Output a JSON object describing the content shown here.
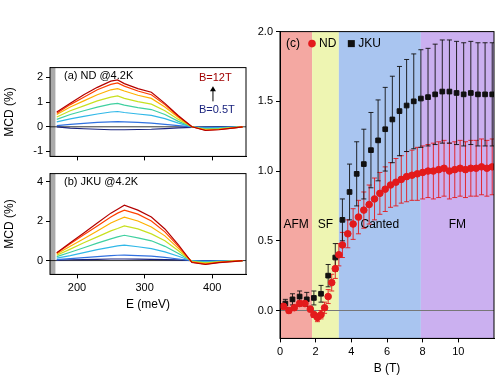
{
  "chart_data": [
    {
      "type": "line",
      "title": "(a) ND @4.2K",
      "x": [
        170,
        190,
        210,
        230,
        250,
        260,
        270,
        290,
        310,
        330,
        350,
        370,
        390,
        410,
        430,
        445
      ],
      "series": [
        {
          "color": "#b30000",
          "values": [
            0.6,
            0.95,
            1.3,
            1.6,
            1.85,
            1.9,
            1.75,
            1.55,
            1.4,
            0.95,
            0.45,
            0.0,
            -0.15,
            -0.12,
            -0.05,
            0.0
          ]
        },
        {
          "color": "#ff4000",
          "values": [
            0.55,
            0.9,
            1.2,
            1.5,
            1.72,
            1.78,
            1.65,
            1.45,
            1.3,
            0.9,
            0.42,
            0.0,
            -0.14,
            -0.11,
            -0.05,
            0.0
          ]
        },
        {
          "color": "#ffb000",
          "values": [
            0.5,
            0.8,
            1.05,
            1.3,
            1.5,
            1.55,
            1.45,
            1.28,
            1.15,
            0.8,
            0.38,
            0.0,
            -0.12,
            -0.1,
            -0.04,
            0.0
          ]
        },
        {
          "color": "#c8e020",
          "values": [
            0.4,
            0.65,
            0.85,
            1.05,
            1.2,
            1.25,
            1.15,
            1.02,
            0.92,
            0.65,
            0.3,
            0.0,
            -0.1,
            -0.08,
            -0.03,
            0.0
          ]
        },
        {
          "color": "#40d0a0",
          "values": [
            0.3,
            0.5,
            0.65,
            0.8,
            0.92,
            0.95,
            0.88,
            0.78,
            0.7,
            0.5,
            0.22,
            0.0,
            -0.08,
            -0.06,
            -0.02,
            0.0
          ]
        },
        {
          "color": "#30b8e8",
          "values": [
            0.2,
            0.32,
            0.42,
            0.52,
            0.6,
            0.62,
            0.58,
            0.52,
            0.46,
            0.33,
            0.15,
            0.0,
            -0.05,
            -0.04,
            -0.02,
            0.0
          ]
        },
        {
          "color": "#3070e0",
          "values": [
            0.05,
            0.1,
            0.14,
            0.18,
            0.2,
            0.21,
            0.2,
            0.18,
            0.15,
            0.1,
            0.05,
            0.0,
            -0.02,
            -0.02,
            0.0,
            0.0
          ]
        },
        {
          "color": "#1a237e",
          "values": [
            0.0,
            -0.05,
            -0.08,
            -0.1,
            -0.12,
            -0.12,
            -0.12,
            -0.11,
            -0.1,
            -0.07,
            -0.04,
            -0.02,
            -0.01,
            0.0,
            0.0,
            0.0
          ]
        }
      ],
      "xlim": [
        160,
        450
      ],
      "xticks": [
        200,
        300,
        400
      ],
      "ylim": [
        -1.2,
        2.4
      ],
      "yticks": [
        -1,
        0,
        1,
        2
      ],
      "y_label": "MCD (%)",
      "tick_labels": "y",
      "grid": false,
      "excluded_range": [
        160,
        168
      ],
      "zero_line": 0,
      "annotations": [
        {
          "text": "B=12T",
          "color": "#a00000"
        },
        {
          "text": "B=0.5T",
          "color": "#1a237e"
        }
      ]
    },
    {
      "type": "line",
      "title": "(b) JKU @4.2K",
      "x": [
        170,
        190,
        210,
        230,
        250,
        260,
        270,
        290,
        310,
        330,
        350,
        370,
        390,
        410,
        430,
        445
      ],
      "series": [
        {
          "color": "#b30000",
          "values": [
            0.4,
            0.9,
            1.4,
            1.9,
            2.4,
            2.6,
            2.8,
            2.55,
            2.2,
            1.6,
            0.8,
            -0.1,
            -0.2,
            -0.1,
            -0.05,
            0.0
          ]
        },
        {
          "color": "#ff4000",
          "values": [
            0.38,
            0.85,
            1.3,
            1.75,
            2.2,
            2.4,
            2.55,
            2.35,
            2.0,
            1.45,
            0.72,
            -0.08,
            -0.18,
            -0.09,
            -0.04,
            0.0
          ]
        },
        {
          "color": "#ffb000",
          "values": [
            0.33,
            0.72,
            1.1,
            1.5,
            1.9,
            2.05,
            2.2,
            2.0,
            1.7,
            1.25,
            0.62,
            -0.06,
            -0.15,
            -0.08,
            -0.03,
            0.0
          ]
        },
        {
          "color": "#c8e020",
          "values": [
            0.27,
            0.58,
            0.9,
            1.2,
            1.5,
            1.62,
            1.75,
            1.6,
            1.35,
            1.0,
            0.5,
            -0.05,
            -0.12,
            -0.06,
            -0.03,
            0.0
          ]
        },
        {
          "color": "#40d0a0",
          "values": [
            0.2,
            0.42,
            0.65,
            0.88,
            1.1,
            1.2,
            1.28,
            1.15,
            1.0,
            0.72,
            0.36,
            -0.03,
            -0.09,
            -0.05,
            -0.02,
            0.0
          ]
        },
        {
          "color": "#30b8e8",
          "values": [
            0.12,
            0.25,
            0.4,
            0.55,
            0.68,
            0.74,
            0.78,
            0.7,
            0.6,
            0.44,
            0.22,
            -0.02,
            -0.06,
            -0.03,
            -0.01,
            0.0
          ]
        },
        {
          "color": "#3070e0",
          "values": [
            0.05,
            0.1,
            0.15,
            0.2,
            0.25,
            0.27,
            0.28,
            0.25,
            0.22,
            0.16,
            0.08,
            0.0,
            -0.02,
            -0.01,
            0.0,
            0.0
          ]
        },
        {
          "color": "#1a237e",
          "values": [
            0.02,
            0.04,
            0.05,
            0.06,
            0.08,
            0.08,
            0.08,
            0.07,
            0.06,
            0.05,
            0.03,
            0.0,
            -0.01,
            0.0,
            0.0,
            0.0
          ]
        }
      ],
      "xlim": [
        160,
        450
      ],
      "xticks": [
        200,
        300,
        400
      ],
      "ylim": [
        -0.7,
        4.4
      ],
      "yticks": [
        0,
        2,
        4
      ],
      "x_label": "E (meV)",
      "y_label": "MCD (%)",
      "grid": false,
      "excluded_range": [
        160,
        168
      ],
      "zero_line": 0
    },
    {
      "type": "scatter",
      "title": "(c)",
      "series": [
        {
          "name": "ND",
          "color": "#e31a1c",
          "marker": "circle",
          "x": [
            0.2,
            0.5,
            0.8,
            1.1,
            1.4,
            1.7,
            1.9,
            2.1,
            2.3,
            2.5,
            2.7,
            2.9,
            3.1,
            3.3,
            3.5,
            3.8,
            4.1,
            4.4,
            4.7,
            5.0,
            5.3,
            5.6,
            5.9,
            6.2,
            6.5,
            6.8,
            7.1,
            7.4,
            7.7,
            8.0,
            8.3,
            8.6,
            8.9,
            9.2,
            9.5,
            9.8,
            10.1,
            10.4,
            10.7,
            11.0,
            11.3,
            11.6,
            11.9
          ],
          "values": [
            0.03,
            0.0,
            0.02,
            0.05,
            0.05,
            0.01,
            -0.03,
            -0.05,
            -0.03,
            0.02,
            0.1,
            0.2,
            0.3,
            0.4,
            0.47,
            0.55,
            0.62,
            0.67,
            0.72,
            0.76,
            0.8,
            0.84,
            0.87,
            0.9,
            0.92,
            0.94,
            0.96,
            0.97,
            0.98,
            0.99,
            1.0,
            1.0,
            1.01,
            1.02,
            1.0,
            1.01,
            1.02,
            1.01,
            1.02,
            1.02,
            1.03,
            1.02,
            1.03
          ],
          "errors": [
            0.02,
            0.02,
            0.02,
            0.02,
            0.02,
            0.02,
            0.02,
            0.03,
            0.03,
            0.04,
            0.05,
            0.06,
            0.07,
            0.08,
            0.09,
            0.1,
            0.11,
            0.12,
            0.13,
            0.14,
            0.15,
            0.15,
            0.16,
            0.16,
            0.17,
            0.17,
            0.18,
            0.18,
            0.19,
            0.19,
            0.19,
            0.2,
            0.2,
            0.2,
            0.2,
            0.2,
            0.2,
            0.2,
            0.2,
            0.2,
            0.2,
            0.2,
            0.2
          ]
        },
        {
          "name": "JKU",
          "color": "#111111",
          "marker": "square",
          "x": [
            0.3,
            0.7,
            1.1,
            1.5,
            1.9,
            2.3,
            2.7,
            3.1,
            3.5,
            3.9,
            4.3,
            4.7,
            5.1,
            5.5,
            5.9,
            6.3,
            6.7,
            7.1,
            7.5,
            7.9,
            8.3,
            8.7,
            9.1,
            9.5,
            9.9,
            10.3,
            10.7,
            11.1,
            11.5,
            11.9
          ],
          "values": [
            0.05,
            0.08,
            0.1,
            0.08,
            0.09,
            0.12,
            0.25,
            0.38,
            0.65,
            0.85,
            0.98,
            1.05,
            1.15,
            1.22,
            1.3,
            1.37,
            1.43,
            1.47,
            1.5,
            1.52,
            1.53,
            1.55,
            1.57,
            1.57,
            1.56,
            1.55,
            1.56,
            1.55,
            1.55,
            1.55
          ],
          "errors": [
            0.03,
            0.04,
            0.04,
            0.05,
            0.05,
            0.06,
            0.08,
            0.1,
            0.15,
            0.2,
            0.23,
            0.25,
            0.27,
            0.29,
            0.3,
            0.31,
            0.32,
            0.33,
            0.34,
            0.35,
            0.35,
            0.36,
            0.37,
            0.37,
            0.37,
            0.37,
            0.37,
            0.37,
            0.37,
            0.37
          ]
        }
      ],
      "xlim": [
        0,
        12
      ],
      "xticks": [
        0,
        2,
        4,
        6,
        8,
        10
      ],
      "ylim": [
        -0.2,
        2.0
      ],
      "yticks": [
        {
          "value": 0,
          "label": "0.0"
        },
        {
          "value": 0.5,
          "label": "0.5"
        },
        {
          "value": 1,
          "label": "1.0"
        },
        {
          "value": 1.5,
          "label": "1.5"
        },
        {
          "value": 2,
          "label": "2.0"
        }
      ],
      "x_label": "B (T)",
      "legend": "top-left",
      "grid": false,
      "zero_line": 0,
      "regions": [
        {
          "label": "AFM",
          "from": 0,
          "to": 1.8,
          "color": "#f4a8a2"
        },
        {
          "label": "SF",
          "from": 1.8,
          "to": 3.3,
          "color": "#eef5b2"
        },
        {
          "label": "Canted",
          "from": 3.3,
          "to": 7.9,
          "color": "#a9c5f0"
        },
        {
          "label": "FM",
          "from": 7.9,
          "to": 12,
          "color": "#cbb0f0"
        }
      ]
    }
  ]
}
